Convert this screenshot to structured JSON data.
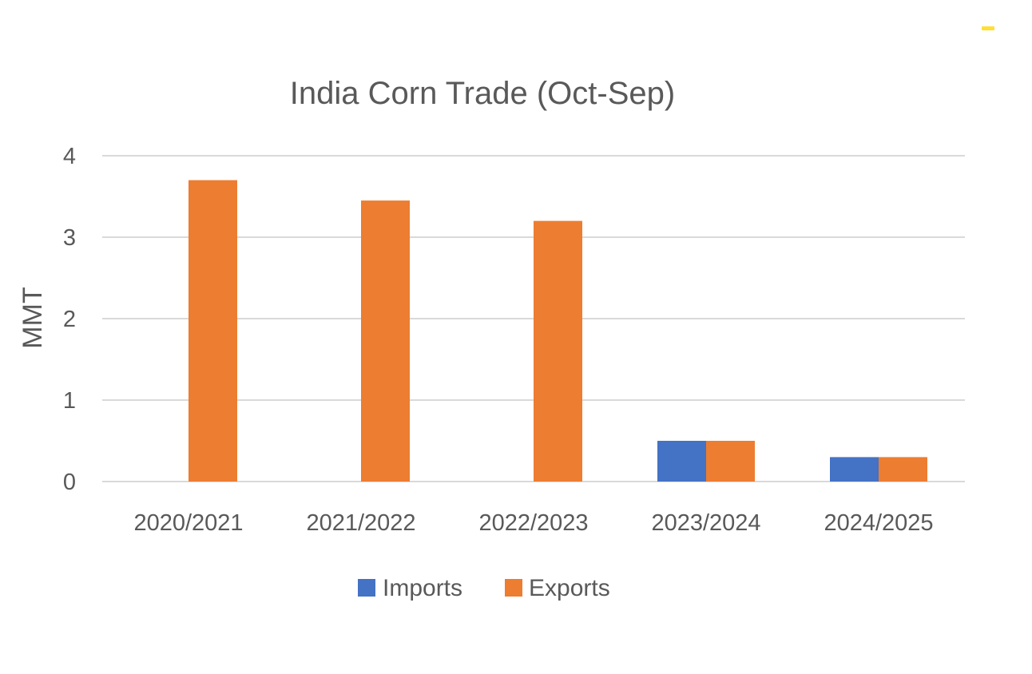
{
  "chart_data": {
    "type": "bar",
    "title": "India Corn Trade (Oct-Sep)",
    "xlabel": "",
    "ylabel": "MMT",
    "categories": [
      "2020/2021",
      "2021/2022",
      "2022/2023",
      "2023/2024",
      "2024/2025"
    ],
    "series": [
      {
        "name": "Imports",
        "color": "#4472C4",
        "values": [
          0,
          0,
          0,
          0.5,
          0.3
        ]
      },
      {
        "name": "Exports",
        "color": "#ED7D31",
        "values": [
          3.7,
          3.45,
          3.2,
          0.5,
          0.3
        ]
      }
    ],
    "yticks": [
      "0",
      "1",
      "2",
      "3",
      "4"
    ],
    "ylim": [
      0,
      4
    ],
    "grid": true,
    "legend": "bottom"
  },
  "decoration": {
    "accent_color": "#FFE033"
  }
}
